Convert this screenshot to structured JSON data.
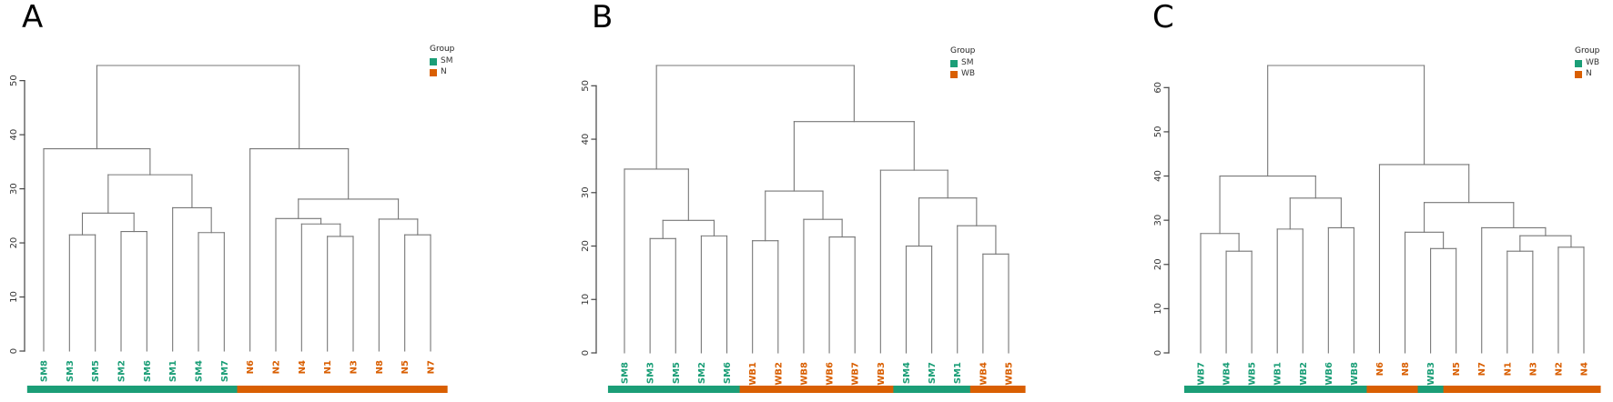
{
  "figure_title": "",
  "chart_data": [
    {
      "type": "dendrogram",
      "title": "A",
      "legend": {
        "title": "Group",
        "entries": [
          {
            "label": "SM",
            "color": "#1B9E77"
          },
          {
            "label": "N",
            "color": "#D95F02"
          }
        ]
      },
      "yticks": [
        0,
        10,
        20,
        30,
        40,
        50
      ],
      "ylim": [
        0,
        52.8
      ],
      "leaf_order": [
        "SM8",
        "SM3",
        "SM5",
        "SM2",
        "SM6",
        "SM1",
        "SM4",
        "SM7",
        "N6",
        "N2",
        "N4",
        "N1",
        "N3",
        "N8",
        "N5",
        "N7"
      ],
      "tree": {
        "h": 52.8,
        "c": [
          {
            "h": 37.4,
            "c": [
              {
                "n": "SM8",
                "g": "SM"
              },
              {
                "h": 32.6,
                "c": [
                  {
                    "h": 25.5,
                    "c": [
                      {
                        "h": 21.5,
                        "c": [
                          {
                            "n": "SM3",
                            "g": "SM"
                          },
                          {
                            "n": "SM5",
                            "g": "SM"
                          }
                        ]
                      },
                      {
                        "h": 22.1,
                        "c": [
                          {
                            "n": "SM2",
                            "g": "SM"
                          },
                          {
                            "n": "SM6",
                            "g": "SM"
                          }
                        ]
                      }
                    ]
                  },
                  {
                    "h": 26.5,
                    "c": [
                      {
                        "n": "SM1",
                        "g": "SM"
                      },
                      {
                        "h": 21.9,
                        "c": [
                          {
                            "n": "SM4",
                            "g": "SM"
                          },
                          {
                            "n": "SM7",
                            "g": "SM"
                          }
                        ]
                      }
                    ]
                  }
                ]
              }
            ]
          },
          {
            "h": 37.4,
            "c": [
              {
                "n": "N6",
                "g": "N"
              },
              {
                "h": 28.1,
                "c": [
                  {
                    "h": 24.5,
                    "c": [
                      {
                        "n": "N2",
                        "g": "N"
                      },
                      {
                        "h": 23.5,
                        "c": [
                          {
                            "n": "N4",
                            "g": "N"
                          },
                          {
                            "h": 21.2,
                            "c": [
                              {
                                "n": "N1",
                                "g": "N"
                              },
                              {
                                "n": "N3",
                                "g": "N"
                              }
                            ]
                          }
                        ]
                      }
                    ]
                  },
                  {
                    "h": 24.4,
                    "c": [
                      {
                        "n": "N8",
                        "g": "N"
                      },
                      {
                        "h": 21.5,
                        "c": [
                          {
                            "n": "N5",
                            "g": "N"
                          },
                          {
                            "n": "N7",
                            "g": "N"
                          }
                        ]
                      }
                    ]
                  }
                ]
              }
            ]
          }
        ]
      }
    },
    {
      "type": "dendrogram",
      "title": "B",
      "legend": {
        "title": "Group",
        "entries": [
          {
            "label": "SM",
            "color": "#1B9E77"
          },
          {
            "label": "WB",
            "color": "#D95F02"
          }
        ]
      },
      "yticks": [
        0,
        10,
        20,
        30,
        40,
        50
      ],
      "ylim": [
        0,
        53.8
      ],
      "leaf_order": [
        "SM8",
        "SM3",
        "SM5",
        "SM2",
        "SM6",
        "WB1",
        "WB2",
        "WB8",
        "WB6",
        "WB7",
        "WB3",
        "SM4",
        "SM7",
        "SM1",
        "WB4",
        "WB5"
      ],
      "tree": {
        "h": 53.8,
        "c": [
          {
            "h": 34.4,
            "c": [
              {
                "n": "SM8",
                "g": "SM"
              },
              {
                "h": 24.8,
                "c": [
                  {
                    "h": 21.4,
                    "c": [
                      {
                        "n": "SM3",
                        "g": "SM"
                      },
                      {
                        "n": "SM5",
                        "g": "SM"
                      }
                    ]
                  },
                  {
                    "h": 21.9,
                    "c": [
                      {
                        "n": "SM2",
                        "g": "SM"
                      },
                      {
                        "n": "SM6",
                        "g": "SM"
                      }
                    ]
                  }
                ]
              }
            ]
          },
          {
            "h": 43.3,
            "c": [
              {
                "h": 30.3,
                "c": [
                  {
                    "h": 21.0,
                    "c": [
                      {
                        "n": "WB1",
                        "g": "WB"
                      },
                      {
                        "n": "WB2",
                        "g": "WB"
                      }
                    ]
                  },
                  {
                    "h": 25.0,
                    "c": [
                      {
                        "n": "WB8",
                        "g": "WB"
                      },
                      {
                        "h": 21.7,
                        "c": [
                          {
                            "n": "WB6",
                            "g": "WB"
                          },
                          {
                            "n": "WB7",
                            "g": "WB"
                          }
                        ]
                      }
                    ]
                  }
                ]
              },
              {
                "h": 34.2,
                "c": [
                  {
                    "n": "WB3",
                    "g": "WB"
                  },
                  {
                    "h": 29.0,
                    "c": [
                      {
                        "h": 20.0,
                        "c": [
                          {
                            "n": "SM4",
                            "g": "SM"
                          },
                          {
                            "n": "SM7",
                            "g": "SM"
                          }
                        ]
                      },
                      {
                        "h": 23.8,
                        "c": [
                          {
                            "n": "SM1",
                            "g": "SM"
                          },
                          {
                            "h": 18.5,
                            "c": [
                              {
                                "n": "WB4",
                                "g": "WB"
                              },
                              {
                                "n": "WB5",
                                "g": "WB"
                              }
                            ]
                          }
                        ]
                      }
                    ]
                  }
                ]
              }
            ]
          }
        ]
      }
    },
    {
      "type": "dendrogram",
      "title": "C",
      "legend": {
        "title": "Group",
        "entries": [
          {
            "label": "WB",
            "color": "#1B9E77"
          },
          {
            "label": "N",
            "color": "#D95F02"
          }
        ]
      },
      "yticks": [
        0,
        10,
        20,
        30,
        40,
        50,
        60
      ],
      "ylim": [
        0,
        65.0
      ],
      "leaf_order": [
        "WB7",
        "WB4",
        "WB5",
        "WB1",
        "WB2",
        "WB6",
        "WB8",
        "N6",
        "N8",
        "WB3",
        "N5",
        "N7",
        "N1",
        "N3",
        "N2",
        "N4"
      ],
      "tree": {
        "h": 65.0,
        "c": [
          {
            "h": 40.0,
            "c": [
              {
                "h": 27.0,
                "c": [
                  {
                    "n": "WB7",
                    "g": "WB"
                  },
                  {
                    "h": 23.0,
                    "c": [
                      {
                        "n": "WB4",
                        "g": "WB"
                      },
                      {
                        "n": "WB5",
                        "g": "WB"
                      }
                    ]
                  }
                ]
              },
              {
                "h": 35.0,
                "c": [
                  {
                    "h": 28.0,
                    "c": [
                      {
                        "n": "WB1",
                        "g": "WB"
                      },
                      {
                        "n": "WB2",
                        "g": "WB"
                      }
                    ]
                  },
                  {
                    "h": 28.3,
                    "c": [
                      {
                        "n": "WB6",
                        "g": "WB"
                      },
                      {
                        "n": "WB8",
                        "g": "WB"
                      }
                    ]
                  }
                ]
              }
            ]
          },
          {
            "h": 42.6,
            "c": [
              {
                "n": "N6",
                "g": "N"
              },
              {
                "h": 34.0,
                "c": [
                  {
                    "h": 27.3,
                    "c": [
                      {
                        "n": "N8",
                        "g": "N"
                      },
                      {
                        "h": 23.6,
                        "c": [
                          {
                            "n": "WB3",
                            "g": "WB"
                          },
                          {
                            "n": "N5",
                            "g": "N"
                          }
                        ]
                      }
                    ]
                  },
                  {
                    "h": 28.3,
                    "c": [
                      {
                        "n": "N7",
                        "g": "N"
                      },
                      {
                        "h": 26.5,
                        "c": [
                          {
                            "h": 23.0,
                            "c": [
                              {
                                "n": "N1",
                                "g": "N"
                              },
                              {
                                "n": "N3",
                                "g": "N"
                              }
                            ]
                          },
                          {
                            "h": 23.9,
                            "c": [
                              {
                                "n": "N2",
                                "g": "N"
                              },
                              {
                                "n": "N4",
                                "g": "N"
                              }
                            ]
                          }
                        ]
                      }
                    ]
                  }
                ]
              }
            ]
          }
        ]
      }
    }
  ],
  "style": {
    "link_color": "#777777",
    "axis_color": "#444444",
    "tick_label_color": "#333333"
  }
}
